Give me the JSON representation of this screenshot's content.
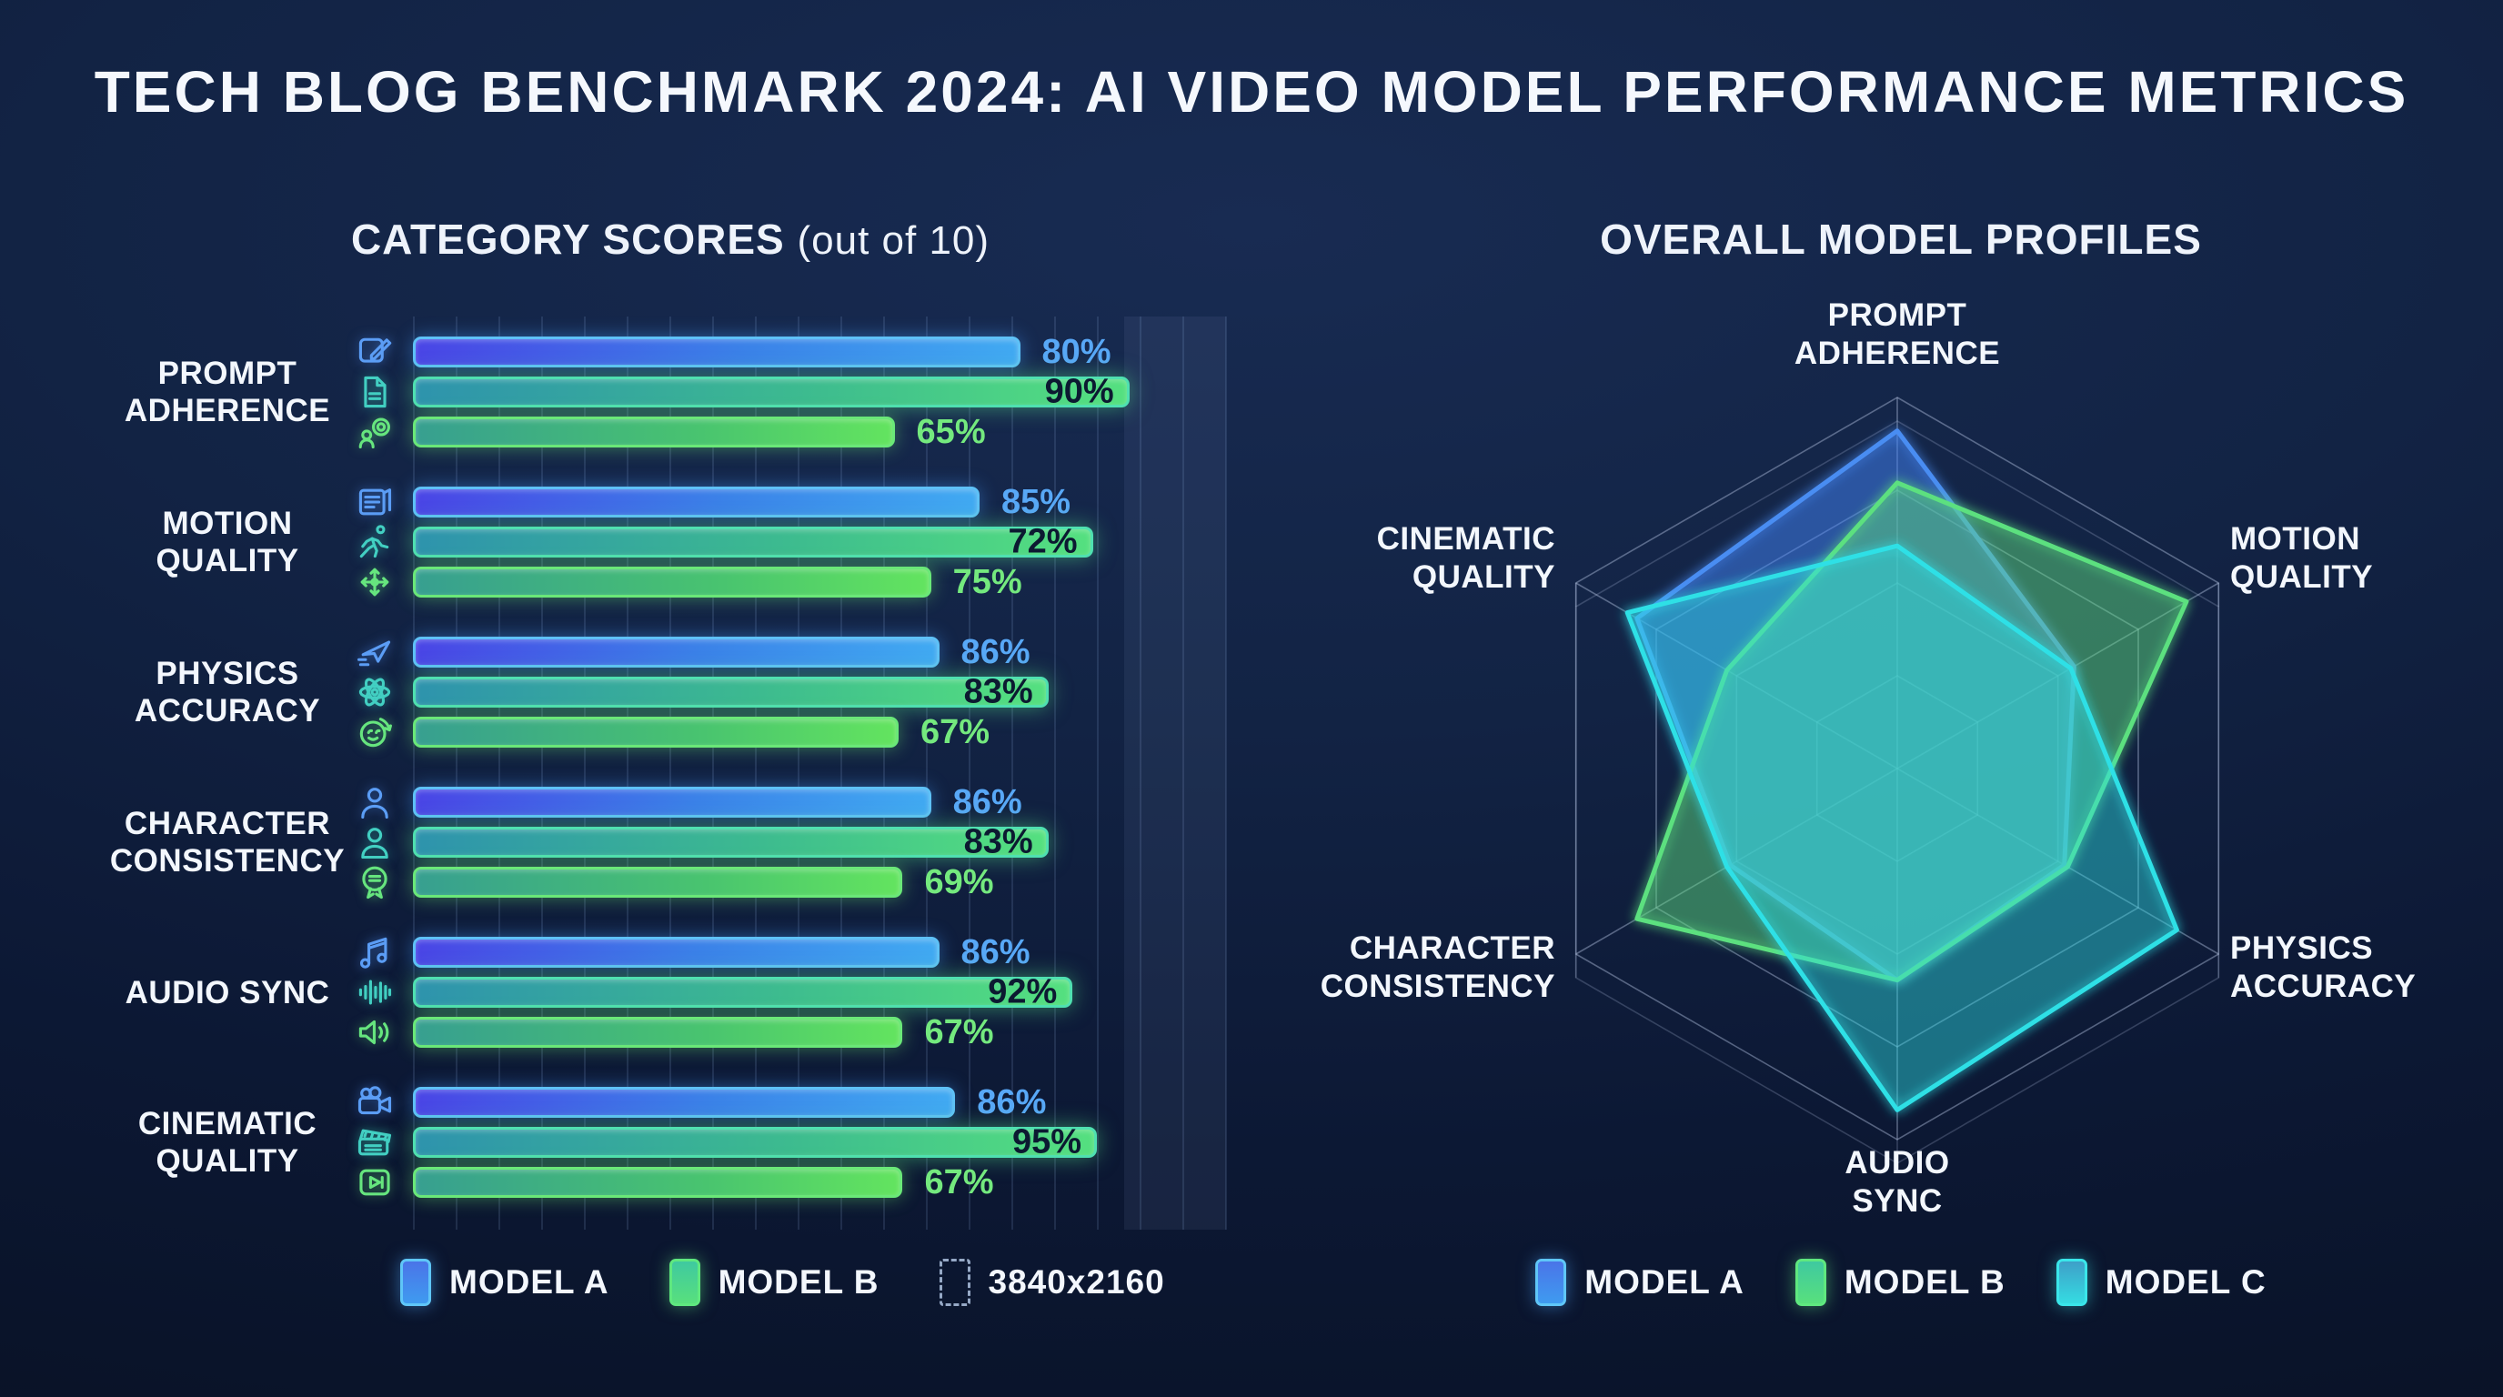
{
  "title": "TECH BLOG BENCHMARK 2024: AI VIDEO MODEL PERFORMANCE METRICS",
  "colors": {
    "model_a": "#3f8ef5",
    "model_b": "#55e081",
    "model_c": "#2fdde4",
    "value_blue": "#58a8f7",
    "value_green": "#74e97e",
    "value_dark": "#0c1a31",
    "background": "#0e1b36"
  },
  "left_panel": {
    "heading_bold": "CATEGORY SCORES",
    "heading_light": "(out of 10)",
    "categories": [
      {
        "label": "PROMPT ADHERENCE",
        "label_lines": [
          "PROMPT",
          "ADHERENCE"
        ],
        "bars": [
          {
            "model": "MODEL A",
            "icon": "edit-icon",
            "value": 80,
            "value_label": "80%",
            "length_pct": 75
          },
          {
            "model": "MODEL B",
            "icon": "document-icon",
            "value": 90,
            "value_label": "90%",
            "length_pct": 88.5
          },
          {
            "model": "MODEL C",
            "icon": "user-lens-icon",
            "value": 65,
            "value_label": "65%",
            "length_pct": 59.5
          }
        ]
      },
      {
        "label": "MOTION QUALITY",
        "label_lines": [
          "MOTION",
          "QUALITY"
        ],
        "bars": [
          {
            "model": "MODEL A",
            "icon": "script-icon",
            "value": 85,
            "value_label": "85%",
            "length_pct": 70
          },
          {
            "model": "MODEL B",
            "icon": "runner-icon",
            "value": 72,
            "value_label": "72%",
            "length_pct": 84
          },
          {
            "model": "MODEL C",
            "icon": "move-arrows-icon",
            "value": 75,
            "value_label": "75%",
            "length_pct": 64
          }
        ]
      },
      {
        "label": "PHYSICS ACCURACY",
        "label_lines": [
          "PHYSICS",
          "ACCURACY"
        ],
        "bars": [
          {
            "model": "MODEL A",
            "icon": "paper-plane-icon",
            "value": 86,
            "value_label": "86%",
            "length_pct": 65
          },
          {
            "model": "MODEL B",
            "icon": "atom-icon",
            "value": 83,
            "value_label": "83%",
            "length_pct": 78.5
          },
          {
            "model": "MODEL C",
            "icon": "face-loop-icon",
            "value": 67,
            "value_label": "67%",
            "length_pct": 60
          }
        ]
      },
      {
        "label": "CHARACTER CONSISTENCY",
        "label_lines": [
          "CHARACTER",
          "CONSISTENCY"
        ],
        "bars": [
          {
            "model": "MODEL A",
            "icon": "person-outline-icon",
            "value": 86,
            "value_label": "86%",
            "length_pct": 64
          },
          {
            "model": "MODEL B",
            "icon": "person-icon",
            "value": 83,
            "value_label": "83%",
            "length_pct": 78.5
          },
          {
            "model": "MODEL C",
            "icon": "badge-icon",
            "value": 69,
            "value_label": "69%",
            "length_pct": 60.5
          }
        ]
      },
      {
        "label": "AUDIO SYNC",
        "label_lines": [
          "AUDIO SYNC"
        ],
        "bars": [
          {
            "model": "MODEL A",
            "icon": "music-notes-icon",
            "value": 86,
            "value_label": "86%",
            "length_pct": 65
          },
          {
            "model": "MODEL B",
            "icon": "waveform-icon",
            "value": 92,
            "value_label": "92%",
            "length_pct": 81.5
          },
          {
            "model": "MODEL C",
            "icon": "speaker-icon",
            "value": 67,
            "value_label": "67%",
            "length_pct": 60.5
          }
        ]
      },
      {
        "label": "CINEMATIC QUALITY",
        "label_lines": [
          "CINEMATIC",
          "QUALITY"
        ],
        "bars": [
          {
            "model": "MODEL A",
            "icon": "video-camera-icon",
            "value": 86,
            "value_label": "86%",
            "length_pct": 67
          },
          {
            "model": "MODEL B",
            "icon": "clapperboard-icon",
            "value": 95,
            "value_label": "95%",
            "length_pct": 84.5
          },
          {
            "model": "MODEL C",
            "icon": "play-button-icon",
            "value": 67,
            "value_label": "67%",
            "length_pct": 60.5
          }
        ]
      }
    ],
    "legend": [
      {
        "label": "MODEL A",
        "swatch": "blue"
      },
      {
        "label": "MODEL B",
        "swatch": "green"
      },
      {
        "label": "3840x2160",
        "swatch": "dashed"
      }
    ]
  },
  "right_panel": {
    "heading": "OVERALL MODEL PROFILES",
    "axes": [
      {
        "label": "PROMPT ADHERENCE",
        "lines": [
          "PROMPT",
          "ADHERENCE"
        ]
      },
      {
        "label": "MOTION QUALITY",
        "lines": [
          "MOTION",
          "QUALITY"
        ]
      },
      {
        "label": "PHYSICS ACCURACY",
        "lines": [
          "PHYSICS",
          "ACCURACY"
        ]
      },
      {
        "label": "AUDIO SYNC",
        "lines": [
          "AUDIO",
          "SYNC"
        ]
      },
      {
        "label": "CHARACTER CONSISTENCY",
        "lines": [
          "CHARACTER",
          "CONSISTENCY"
        ]
      },
      {
        "label": "CINEMATIC QUALITY",
        "lines": [
          "CINEMATIC",
          "QUALITY"
        ]
      }
    ],
    "legend": [
      {
        "label": "MODEL A",
        "swatch": "blue"
      },
      {
        "label": "MODEL B",
        "swatch": "green"
      },
      {
        "label": "MODEL C",
        "swatch": "cyan"
      }
    ]
  },
  "chart_data": [
    {
      "type": "bar",
      "orientation": "horizontal",
      "title": "CATEGORY SCORES (out of 10)",
      "unit": "%",
      "categories": [
        "PROMPT ADHERENCE",
        "MOTION QUALITY",
        "PHYSICS ACCURACY",
        "CHARACTER CONSISTENCY",
        "AUDIO SYNC",
        "CINEMATIC QUALITY"
      ],
      "series": [
        {
          "name": "MODEL A",
          "values": [
            80,
            85,
            86,
            86,
            86,
            86
          ]
        },
        {
          "name": "MODEL B",
          "values": [
            90,
            72,
            83,
            83,
            92,
            95
          ]
        },
        {
          "name": "MODEL C",
          "values": [
            65,
            75,
            67,
            69,
            67,
            67
          ]
        }
      ],
      "legend_labels": [
        "MODEL A",
        "MODEL B",
        "3840x2160"
      ],
      "grid": "vertical-lines",
      "value_labels_shown": true
    },
    {
      "type": "radar",
      "title": "OVERALL MODEL PROFILES",
      "axes": [
        "PROMPT ADHERENCE",
        "MOTION QUALITY",
        "PHYSICS ACCURACY",
        "AUDIO SYNC",
        "CHARACTER CONSISTENCY",
        "CINEMATIC QUALITY"
      ],
      "scale_max": 100,
      "grid_levels": [
        25,
        50,
        75,
        100
      ],
      "series": [
        {
          "name": "MODEL A",
          "values": [
            91,
            55,
            52,
            57,
            52,
            81
          ]
        },
        {
          "name": "MODEL B",
          "values": [
            77,
            90,
            53,
            57,
            81,
            53
          ]
        },
        {
          "name": "MODEL C",
          "values": [
            60,
            54,
            87,
            92,
            53,
            84
          ]
        }
      ],
      "legend_position": "bottom"
    }
  ]
}
